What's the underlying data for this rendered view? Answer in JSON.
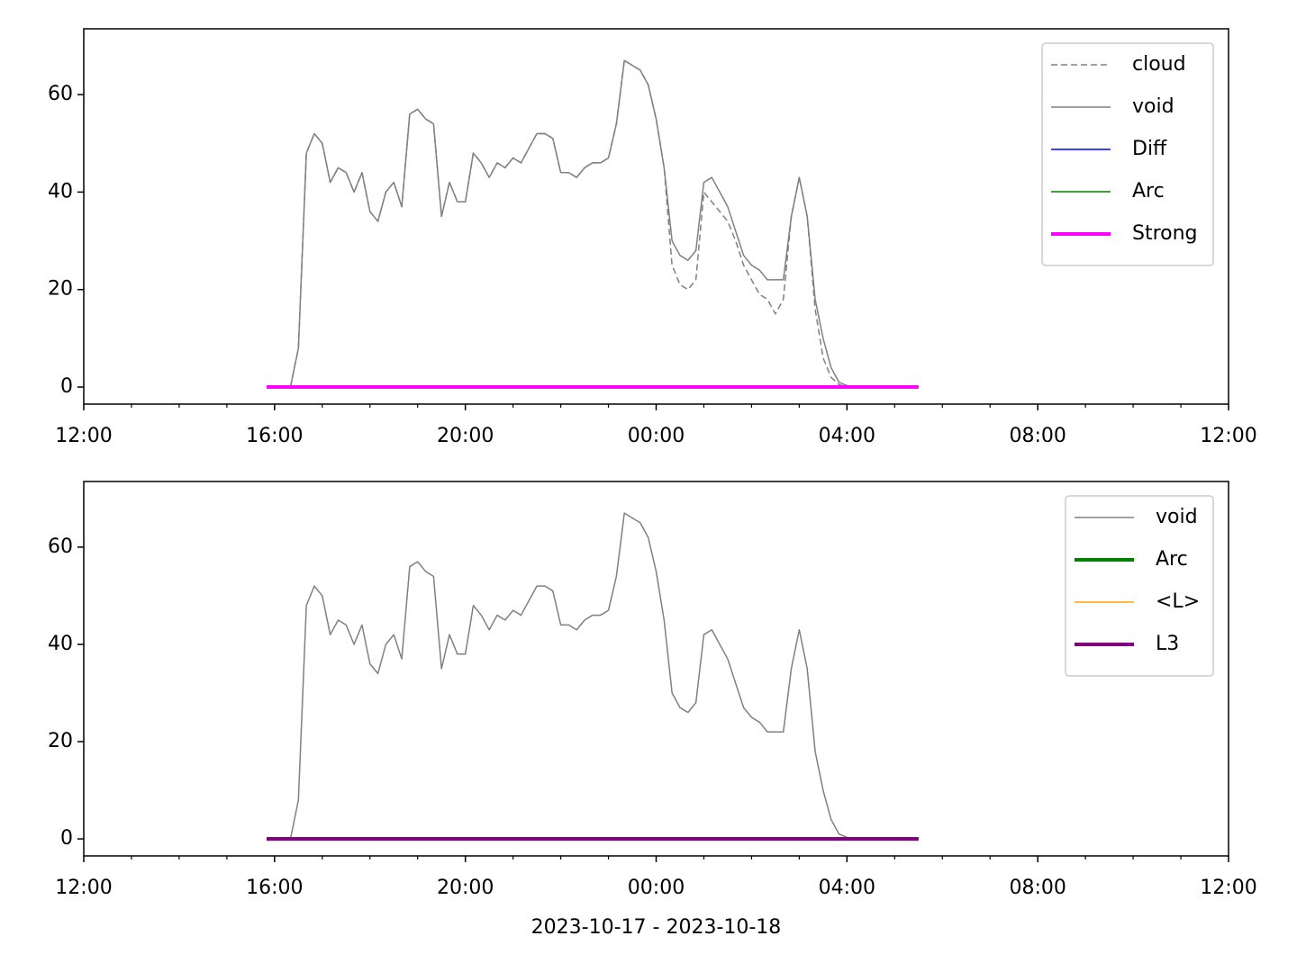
{
  "chart_data": [
    {
      "type": "line",
      "xlim": [
        "2023-10-17 12:00",
        "2023-10-18 12:00"
      ],
      "xticks": [
        {
          "value": "2023-10-17 12:00",
          "label": "12:00"
        },
        {
          "value": "2023-10-17 16:00",
          "label": "16:00"
        },
        {
          "value": "2023-10-17 20:00",
          "label": "20:00"
        },
        {
          "value": "2023-10-18 00:00",
          "label": "00:00"
        },
        {
          "value": "2023-10-18 04:00",
          "label": "04:00"
        },
        {
          "value": "2023-10-18 08:00",
          "label": "08:00"
        },
        {
          "value": "2023-10-18 12:00",
          "label": "12:00"
        }
      ],
      "xminorticks": [
        "2023-10-17 13:00",
        "2023-10-17 14:00",
        "2023-10-17 15:00",
        "2023-10-17 17:00",
        "2023-10-17 18:00",
        "2023-10-17 19:00",
        "2023-10-17 21:00",
        "2023-10-17 22:00",
        "2023-10-17 23:00",
        "2023-10-18 01:00",
        "2023-10-18 02:00",
        "2023-10-18 03:00",
        "2023-10-18 05:00",
        "2023-10-18 06:00",
        "2023-10-18 07:00",
        "2023-10-18 09:00",
        "2023-10-18 10:00",
        "2023-10-18 11:00"
      ],
      "ylim": [
        -3.5,
        73.5
      ],
      "yticks": [
        0,
        20,
        40,
        60
      ],
      "legend": "upper right",
      "series": [
        {
          "name": "cloud",
          "color": "#808080",
          "linestyle": "dashed",
          "linewidth": 1.5,
          "x": [
            "2023-10-17 16:20",
            "2023-10-17 16:30",
            "2023-10-17 16:40",
            "2023-10-17 16:50",
            "2023-10-17 17:00",
            "2023-10-17 17:10",
            "2023-10-17 17:20",
            "2023-10-17 17:30",
            "2023-10-17 17:40",
            "2023-10-17 17:50",
            "2023-10-17 18:00",
            "2023-10-17 18:10",
            "2023-10-17 18:20",
            "2023-10-17 18:30",
            "2023-10-17 18:40",
            "2023-10-17 18:50",
            "2023-10-17 19:00",
            "2023-10-17 19:10",
            "2023-10-17 19:20",
            "2023-10-17 19:30",
            "2023-10-17 19:40",
            "2023-10-17 19:50",
            "2023-10-17 20:00",
            "2023-10-17 20:10",
            "2023-10-17 20:20",
            "2023-10-17 20:30",
            "2023-10-17 20:40",
            "2023-10-17 20:50",
            "2023-10-17 21:00",
            "2023-10-17 21:10",
            "2023-10-17 21:20",
            "2023-10-17 21:30",
            "2023-10-17 21:40",
            "2023-10-17 21:50",
            "2023-10-17 22:00",
            "2023-10-17 22:10",
            "2023-10-17 22:20",
            "2023-10-17 22:30",
            "2023-10-17 22:40",
            "2023-10-17 22:50",
            "2023-10-17 23:00",
            "2023-10-17 23:10",
            "2023-10-17 23:20",
            "2023-10-17 23:30",
            "2023-10-17 23:40",
            "2023-10-17 23:50",
            "2023-10-18 00:00",
            "2023-10-18 00:10",
            "2023-10-18 00:20",
            "2023-10-18 00:30",
            "2023-10-18 00:40",
            "2023-10-18 00:50",
            "2023-10-18 01:00",
            "2023-10-18 01:10",
            "2023-10-18 01:20",
            "2023-10-18 01:30",
            "2023-10-18 01:40",
            "2023-10-18 01:50",
            "2023-10-18 02:00",
            "2023-10-18 02:10",
            "2023-10-18 02:20",
            "2023-10-18 02:30",
            "2023-10-18 02:40",
            "2023-10-18 02:50",
            "2023-10-18 03:00",
            "2023-10-18 03:10",
            "2023-10-18 03:20",
            "2023-10-18 03:30",
            "2023-10-18 03:40",
            "2023-10-18 03:50",
            "2023-10-18 04:00",
            "2023-10-18 04:10",
            "2023-10-18 04:20"
          ],
          "values": [
            0,
            8,
            48,
            52,
            50,
            42,
            45,
            44,
            40,
            44,
            36,
            34,
            40,
            42,
            37,
            56,
            57,
            55,
            54,
            35,
            42,
            38,
            38,
            48,
            46,
            43,
            46,
            45,
            47,
            46,
            49,
            52,
            52,
            51,
            44,
            44,
            43,
            45,
            46,
            46,
            47,
            54,
            67,
            66,
            65,
            62,
            55,
            45,
            25,
            21,
            20,
            22,
            40,
            38,
            36,
            34,
            30,
            25,
            22,
            19,
            18,
            15,
            18,
            35,
            43,
            35,
            16,
            6,
            2,
            0.5,
            0,
            0,
            0
          ]
        },
        {
          "name": "void",
          "color": "#808080",
          "linestyle": "solid",
          "linewidth": 1.5,
          "x": [
            "2023-10-17 16:20",
            "2023-10-17 16:30",
            "2023-10-17 16:40",
            "2023-10-17 16:50",
            "2023-10-17 17:00",
            "2023-10-17 17:10",
            "2023-10-17 17:20",
            "2023-10-17 17:30",
            "2023-10-17 17:40",
            "2023-10-17 17:50",
            "2023-10-17 18:00",
            "2023-10-17 18:10",
            "2023-10-17 18:20",
            "2023-10-17 18:30",
            "2023-10-17 18:40",
            "2023-10-17 18:50",
            "2023-10-17 19:00",
            "2023-10-17 19:10",
            "2023-10-17 19:20",
            "2023-10-17 19:30",
            "2023-10-17 19:40",
            "2023-10-17 19:50",
            "2023-10-17 20:00",
            "2023-10-17 20:10",
            "2023-10-17 20:20",
            "2023-10-17 20:30",
            "2023-10-17 20:40",
            "2023-10-17 20:50",
            "2023-10-17 21:00",
            "2023-10-17 21:10",
            "2023-10-17 21:20",
            "2023-10-17 21:30",
            "2023-10-17 21:40",
            "2023-10-17 21:50",
            "2023-10-17 22:00",
            "2023-10-17 22:10",
            "2023-10-17 22:20",
            "2023-10-17 22:30",
            "2023-10-17 22:40",
            "2023-10-17 22:50",
            "2023-10-17 23:00",
            "2023-10-17 23:10",
            "2023-10-17 23:20",
            "2023-10-17 23:30",
            "2023-10-17 23:40",
            "2023-10-17 23:50",
            "2023-10-18 00:00",
            "2023-10-18 00:10",
            "2023-10-18 00:20",
            "2023-10-18 00:30",
            "2023-10-18 00:40",
            "2023-10-18 00:50",
            "2023-10-18 01:00",
            "2023-10-18 01:10",
            "2023-10-18 01:20",
            "2023-10-18 01:30",
            "2023-10-18 01:40",
            "2023-10-18 01:50",
            "2023-10-18 02:00",
            "2023-10-18 02:10",
            "2023-10-18 02:20",
            "2023-10-18 02:30",
            "2023-10-18 02:40",
            "2023-10-18 02:50",
            "2023-10-18 03:00",
            "2023-10-18 03:10",
            "2023-10-18 03:20",
            "2023-10-18 03:30",
            "2023-10-18 03:40",
            "2023-10-18 03:50",
            "2023-10-18 04:00",
            "2023-10-18 04:10",
            "2023-10-18 04:20"
          ],
          "values": [
            0,
            8,
            48,
            52,
            50,
            42,
            45,
            44,
            40,
            44,
            36,
            34,
            40,
            42,
            37,
            56,
            57,
            55,
            54,
            35,
            42,
            38,
            38,
            48,
            46,
            43,
            46,
            45,
            47,
            46,
            49,
            52,
            52,
            51,
            44,
            44,
            43,
            45,
            46,
            46,
            47,
            54,
            67,
            66,
            65,
            62,
            55,
            45,
            30,
            27,
            26,
            28,
            42,
            43,
            40,
            37,
            32,
            27,
            25,
            24,
            22,
            22,
            22,
            35,
            43,
            35,
            18,
            10,
            4,
            1,
            0.3,
            0,
            0
          ]
        },
        {
          "name": "Diff",
          "color": "#0000ff",
          "linestyle": "solid",
          "linewidth": 1.5,
          "x": [
            "2023-10-17 15:50",
            "2023-10-18 05:30"
          ],
          "values": [
            0,
            0
          ]
        },
        {
          "name": "Arc",
          "color": "#008000",
          "linestyle": "solid",
          "linewidth": 1.5,
          "x": [
            "2023-10-17 15:50",
            "2023-10-18 05:30"
          ],
          "values": [
            0,
            0
          ]
        },
        {
          "name": "Strong",
          "color": "#ff00ff",
          "linestyle": "solid",
          "linewidth": 4,
          "x": [
            "2023-10-17 15:50",
            "2023-10-18 05:30"
          ],
          "values": [
            0,
            0
          ]
        }
      ]
    },
    {
      "type": "line",
      "xlabel": "2023-10-17 - 2023-10-18",
      "xlim": [
        "2023-10-17 12:00",
        "2023-10-18 12:00"
      ],
      "xticks": [
        {
          "value": "2023-10-17 12:00",
          "label": "12:00"
        },
        {
          "value": "2023-10-17 16:00",
          "label": "16:00"
        },
        {
          "value": "2023-10-17 20:00",
          "label": "20:00"
        },
        {
          "value": "2023-10-18 00:00",
          "label": "00:00"
        },
        {
          "value": "2023-10-18 04:00",
          "label": "04:00"
        },
        {
          "value": "2023-10-18 08:00",
          "label": "08:00"
        },
        {
          "value": "2023-10-18 12:00",
          "label": "12:00"
        }
      ],
      "xminorticks": [
        "2023-10-17 13:00",
        "2023-10-17 14:00",
        "2023-10-17 15:00",
        "2023-10-17 17:00",
        "2023-10-17 18:00",
        "2023-10-17 19:00",
        "2023-10-17 21:00",
        "2023-10-17 22:00",
        "2023-10-17 23:00",
        "2023-10-18 01:00",
        "2023-10-18 02:00",
        "2023-10-18 03:00",
        "2023-10-18 05:00",
        "2023-10-18 06:00",
        "2023-10-18 07:00",
        "2023-10-18 09:00",
        "2023-10-18 10:00",
        "2023-10-18 11:00"
      ],
      "ylim": [
        -3.5,
        73.5
      ],
      "yticks": [
        0,
        20,
        40,
        60
      ],
      "legend": "upper right",
      "series": [
        {
          "name": "void",
          "color": "#808080",
          "linestyle": "solid",
          "linewidth": 1.5,
          "x": [
            "2023-10-17 16:20",
            "2023-10-17 16:30",
            "2023-10-17 16:40",
            "2023-10-17 16:50",
            "2023-10-17 17:00",
            "2023-10-17 17:10",
            "2023-10-17 17:20",
            "2023-10-17 17:30",
            "2023-10-17 17:40",
            "2023-10-17 17:50",
            "2023-10-17 18:00",
            "2023-10-17 18:10",
            "2023-10-17 18:20",
            "2023-10-17 18:30",
            "2023-10-17 18:40",
            "2023-10-17 18:50",
            "2023-10-17 19:00",
            "2023-10-17 19:10",
            "2023-10-17 19:20",
            "2023-10-17 19:30",
            "2023-10-17 19:40",
            "2023-10-17 19:50",
            "2023-10-17 20:00",
            "2023-10-17 20:10",
            "2023-10-17 20:20",
            "2023-10-17 20:30",
            "2023-10-17 20:40",
            "2023-10-17 20:50",
            "2023-10-17 21:00",
            "2023-10-17 21:10",
            "2023-10-17 21:20",
            "2023-10-17 21:30",
            "2023-10-17 21:40",
            "2023-10-17 21:50",
            "2023-10-17 22:00",
            "2023-10-17 22:10",
            "2023-10-17 22:20",
            "2023-10-17 22:30",
            "2023-10-17 22:40",
            "2023-10-17 22:50",
            "2023-10-17 23:00",
            "2023-10-17 23:10",
            "2023-10-17 23:20",
            "2023-10-17 23:30",
            "2023-10-17 23:40",
            "2023-10-17 23:50",
            "2023-10-18 00:00",
            "2023-10-18 00:10",
            "2023-10-18 00:20",
            "2023-10-18 00:30",
            "2023-10-18 00:40",
            "2023-10-18 00:50",
            "2023-10-18 01:00",
            "2023-10-18 01:10",
            "2023-10-18 01:20",
            "2023-10-18 01:30",
            "2023-10-18 01:40",
            "2023-10-18 01:50",
            "2023-10-18 02:00",
            "2023-10-18 02:10",
            "2023-10-18 02:20",
            "2023-10-18 02:30",
            "2023-10-18 02:40",
            "2023-10-18 02:50",
            "2023-10-18 03:00",
            "2023-10-18 03:10",
            "2023-10-18 03:20",
            "2023-10-18 03:30",
            "2023-10-18 03:40",
            "2023-10-18 03:50",
            "2023-10-18 04:00",
            "2023-10-18 04:10",
            "2023-10-18 04:20"
          ],
          "values": [
            0,
            8,
            48,
            52,
            50,
            42,
            45,
            44,
            40,
            44,
            36,
            34,
            40,
            42,
            37,
            56,
            57,
            55,
            54,
            35,
            42,
            38,
            38,
            48,
            46,
            43,
            46,
            45,
            47,
            46,
            49,
            52,
            52,
            51,
            44,
            44,
            43,
            45,
            46,
            46,
            47,
            54,
            67,
            66,
            65,
            62,
            55,
            45,
            30,
            27,
            26,
            28,
            42,
            43,
            40,
            37,
            32,
            27,
            25,
            24,
            22,
            22,
            22,
            35,
            43,
            35,
            18,
            10,
            4,
            1,
            0.3,
            0,
            0
          ]
        },
        {
          "name": "Arc",
          "color": "#008000",
          "linestyle": "solid",
          "linewidth": 4,
          "x": [
            "2023-10-17 15:50",
            "2023-10-18 05:30"
          ],
          "values": [
            0,
            0
          ]
        },
        {
          "name": "<L>",
          "color": "#ffa500",
          "linestyle": "solid",
          "linewidth": 1.5,
          "x": [
            "2023-10-17 15:50",
            "2023-10-18 05:30"
          ],
          "values": [
            0,
            0
          ]
        },
        {
          "name": "L3",
          "color": "#800080",
          "linestyle": "solid",
          "linewidth": 4,
          "x": [
            "2023-10-17 15:50",
            "2023-10-18 05:30"
          ],
          "values": [
            0,
            0
          ]
        }
      ]
    }
  ]
}
